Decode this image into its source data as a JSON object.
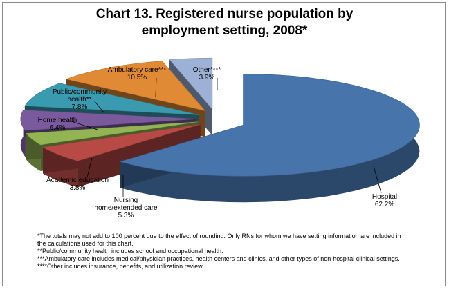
{
  "chart_data": {
    "type": "pie",
    "title_line1": "Chart 13.  Registered nurse population by",
    "title_line2": "employment setting, 2008*",
    "slices": [
      {
        "name": "Hospital",
        "value": 62.2,
        "label_lines": [
          "Hospital",
          "62.2%"
        ],
        "color": "#4674ab"
      },
      {
        "name": "Nursing home/extended care",
        "value": 5.3,
        "label_lines": [
          "Nursing",
          "home/extended care",
          "5.3%"
        ],
        "color": "#b84a46"
      },
      {
        "name": "Academic education",
        "value": 3.8,
        "label_lines": [
          "Academic education",
          "3.8%"
        ],
        "color": "#93b453"
      },
      {
        "name": "Home health",
        "value": 6.4,
        "label_lines": [
          "Home health",
          "6.4%"
        ],
        "color": "#7a5a9c"
      },
      {
        "name": "Public/community health**",
        "value": 7.8,
        "label_lines": [
          "Public/community",
          "health**",
          "7.8%"
        ],
        "color": "#3a9bb0"
      },
      {
        "name": "Ambulatory care***",
        "value": 10.5,
        "label_lines": [
          "Ambulatory care***",
          "10.5%"
        ],
        "color": "#e08a35"
      },
      {
        "name": "Other****",
        "value": 3.9,
        "label_lines": [
          "Other****",
          "3.9%"
        ],
        "color": "#9db1d6"
      }
    ]
  },
  "footnotes": [
    "*The totals may not add to 100 percent due to the effect of rounding.  Only RNs for whom we have setting information are included in the calculations used for this chart.",
    "**Public/community health includes school and occupational health.",
    "***Ambulatory care includes medical/physician practices, health centers and clinics, and other types of non-hospital clinical settings.",
    "****Other includes insurance, benefits, and utilization review."
  ]
}
